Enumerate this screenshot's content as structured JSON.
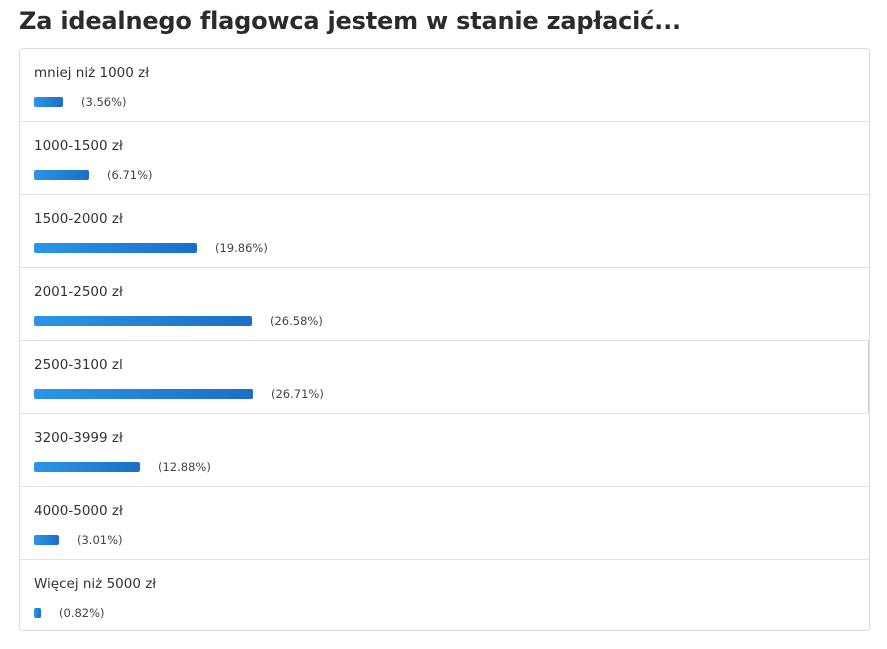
{
  "poll": {
    "title": "Za idealnego flagowca jestem w stanie zapłacić...",
    "bar_color": "#1f7fd6",
    "max_percent": 26.71
  },
  "chart_data": {
    "type": "bar",
    "orientation": "horizontal",
    "title": "Za idealnego flagowca jestem w stanie zapłacić...",
    "categories": [
      "mniej niż 1000 zł",
      "1000-1500 zł",
      "1500-2000 zł",
      "2001-2500 zł",
      "2500-3100 zl",
      "3200-3999 zł",
      "4000-5000 zł",
      "Więcej niż 5000 zł"
    ],
    "values": [
      3.56,
      6.71,
      19.86,
      26.58,
      26.71,
      12.88,
      3.01,
      0.82
    ],
    "value_labels": [
      "(3.56%)",
      "(6.71%)",
      "(19.86%)",
      "(26.58%)",
      "(26.71%)",
      "(12.88%)",
      "(3.01%)",
      "(0.82%)"
    ],
    "xlabel": "",
    "ylabel": "",
    "grid": false
  }
}
